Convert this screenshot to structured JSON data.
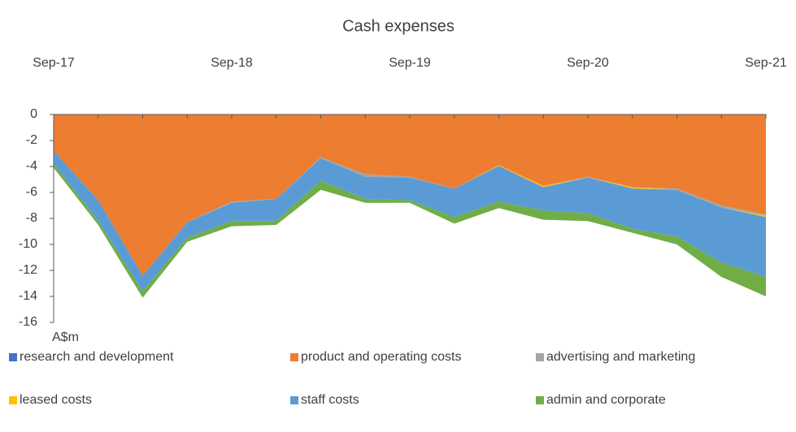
{
  "chart_data": {
    "type": "stacked_area",
    "title": "Cash expenses",
    "y_label": "A$m",
    "categories": [
      "Sep-17",
      null,
      null,
      null,
      "Sep-18",
      null,
      null,
      null,
      "Sep-19",
      null,
      null,
      null,
      "Sep-20",
      null,
      null,
      null,
      "Sep-21"
    ],
    "series": [
      {
        "name": "research and development",
        "color": "#4472c4",
        "values": [
          0,
          0,
          0,
          0,
          0,
          0,
          0,
          0,
          0,
          0,
          0,
          0,
          0,
          0,
          0,
          0,
          0
        ]
      },
      {
        "name": "product and operating costs",
        "color": "#ed7d31",
        "values": [
          -2.8,
          -6.6,
          -12.4,
          -8.3,
          -6.7,
          -6.5,
          -3.3,
          -4.6,
          -4.8,
          -5.7,
          -3.9,
          -5.5,
          -4.8,
          -5.6,
          -5.7,
          -7.0,
          -7.7
        ]
      },
      {
        "name": "advertising and marketing",
        "color": "#a5a5a5",
        "values": [
          0,
          0,
          0,
          0,
          -0.1,
          0,
          -0.05,
          -0.2,
          -0.05,
          0,
          0,
          0,
          -0.05,
          0,
          -0.1,
          -0.15,
          -0.1
        ]
      },
      {
        "name": "leased costs",
        "color": "#ffc000",
        "values": [
          0,
          0,
          0,
          0,
          0,
          0,
          0,
          0,
          0,
          0,
          -0.05,
          -0.1,
          0,
          -0.1,
          0,
          0,
          -0.1
        ]
      },
      {
        "name": "staff costs",
        "color": "#5b9bd5",
        "values": [
          -1.0,
          -1.6,
          -1.2,
          -1.2,
          -1.4,
          -1.7,
          -1.75,
          -1.7,
          -1.75,
          -2.2,
          -2.75,
          -1.8,
          -2.75,
          -3.1,
          -3.6,
          -4.25,
          -4.6
        ]
      },
      {
        "name": "admin and corporate",
        "color": "#70ad47",
        "values": [
          -0.3,
          -0.3,
          -0.5,
          -0.3,
          -0.4,
          -0.3,
          -0.7,
          -0.3,
          -0.2,
          -0.5,
          -0.5,
          -0.7,
          -0.6,
          -0.3,
          -0.6,
          -1.1,
          -1.5
        ]
      }
    ],
    "ylim": [
      -16,
      0
    ],
    "yticks": [
      0,
      -2,
      -4,
      -6,
      -8,
      -10,
      -12,
      -14,
      -16
    ],
    "legend": "bottom"
  }
}
